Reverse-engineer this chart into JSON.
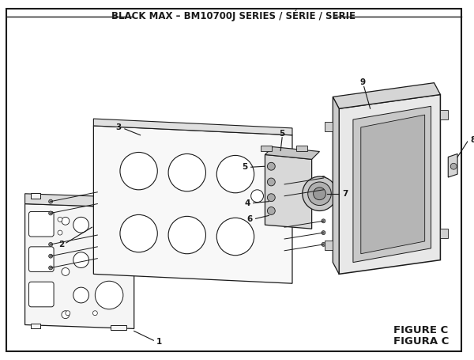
{
  "title": "BLACK MAX – BM10700J SERIES / SÉRIE / SERIE",
  "figure_label": "FIGURE C",
  "figura_label": "FIGURA C",
  "bg_color": "#ffffff",
  "line_color": "#1a1a1a",
  "title_fontsize": 8.5,
  "label_fontsize": 7.5,
  "figure_label_fontsize": 8.5
}
